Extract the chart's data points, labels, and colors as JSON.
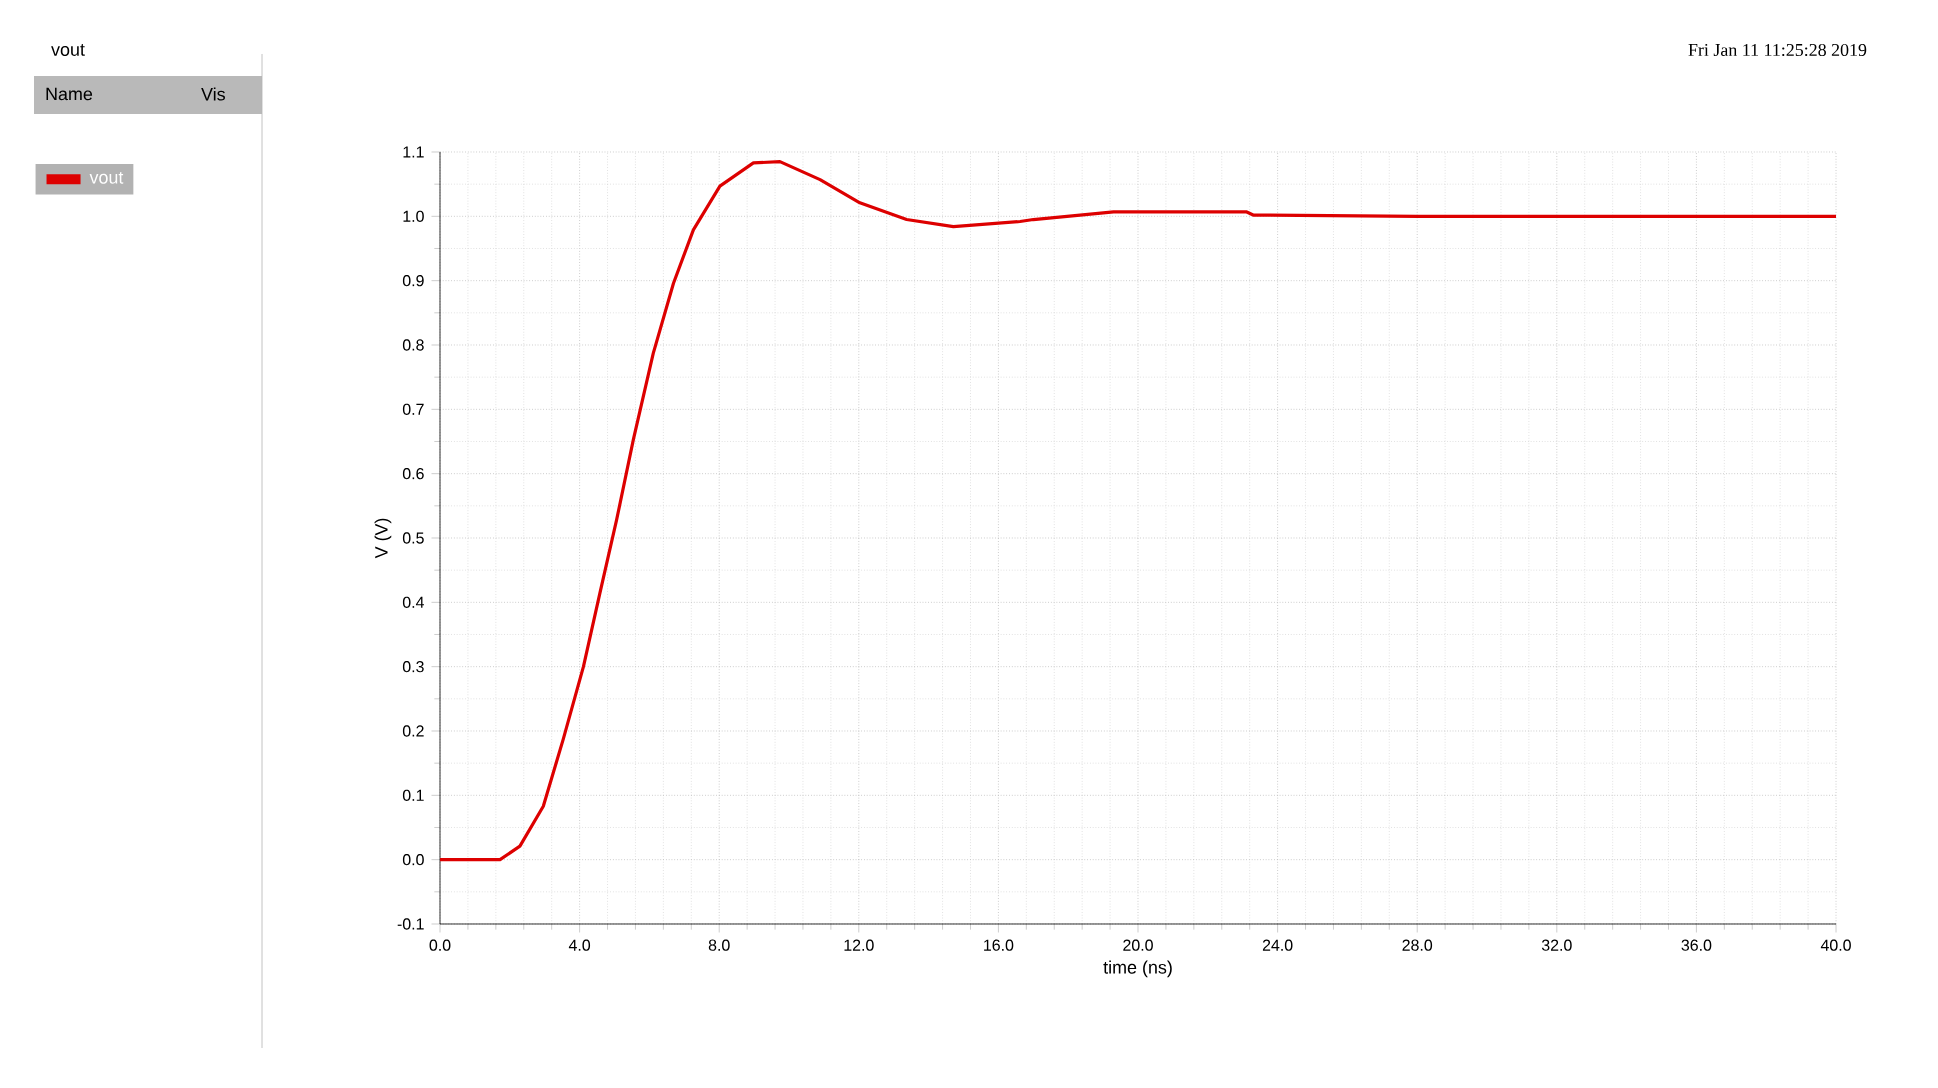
{
  "chart_data": {
    "type": "line",
    "title": "vout",
    "xlabel": "time (ns)",
    "ylabel": "V (V)",
    "annotations": [
      "Fri Jan 11 11:25:28 2019",
      "Name",
      "Vis"
    ],
    "xlim": [
      0,
      40
    ],
    "ylim": [
      -0.1,
      1.1
    ],
    "xticks": [
      {
        "value": 0,
        "label": "0.0"
      },
      {
        "value": 4,
        "label": "4.0"
      },
      {
        "value": 8,
        "label": "8.0"
      },
      {
        "value": 12,
        "label": "12.0"
      },
      {
        "value": 16,
        "label": "16.0"
      },
      {
        "value": 20,
        "label": "20.0"
      },
      {
        "value": 24,
        "label": "24.0"
      },
      {
        "value": 28,
        "label": "28.0"
      },
      {
        "value": 32,
        "label": "32.0"
      },
      {
        "value": 36,
        "label": "36.0"
      },
      {
        "value": 40,
        "label": "40.0"
      }
    ],
    "yticks": [
      -0.1,
      {
        "value": 0,
        "label": "0.0"
      },
      0.1,
      0.2,
      0.3,
      0.4,
      0.5,
      0.6,
      0.7,
      0.8,
      0.9,
      {
        "value": 1,
        "label": "1.0"
      },
      1.1
    ],
    "grid": true,
    "legend": "left",
    "marker": "none",
    "line_style": "solid",
    "series": [
      {
        "name": "vout",
        "color": "#dd0000",
        "x": [
          0,
          1.72,
          2.29,
          2.96,
          3.53,
          4.11,
          4.58,
          5.06,
          5.54,
          6.11,
          6.69,
          7.26,
          8.02,
          8.98,
          9.74,
          10.89,
          12.03,
          13.37,
          14.71,
          16.62,
          17.0,
          18.34,
          19.3,
          23.1,
          23.3,
          28,
          32,
          36,
          40
        ],
        "values": [
          0,
          0,
          0.021,
          0.083,
          0.187,
          0.3,
          0.414,
          0.528,
          0.653,
          0.787,
          0.896,
          0.979,
          1.047,
          1.083,
          1.085,
          1.057,
          1.021,
          0.995,
          0.984,
          0.992,
          0.995,
          1.002,
          1.007,
          1.007,
          1.002,
          1.0,
          1.0,
          1.0,
          1.0
        ]
      }
    ]
  }
}
